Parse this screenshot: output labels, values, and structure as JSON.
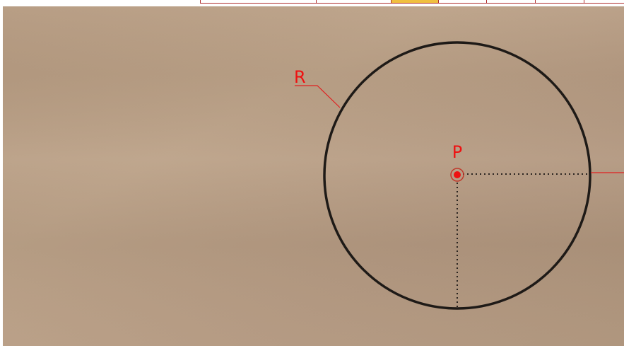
{
  "labels": {
    "radius": "R",
    "center": "P"
  }
}
